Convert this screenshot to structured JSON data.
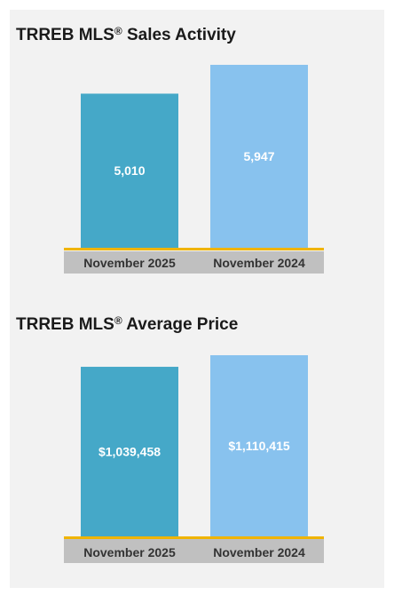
{
  "colors": {
    "panel_bg": "#f2f2f2",
    "bar_current": "#45a8c8",
    "bar_previous": "#88c2ee",
    "baseline": "#f0b400",
    "category_band": "#c0c0c0",
    "title_text": "#1a1a1a",
    "value_label_text": "#ffffff",
    "category_text": "#333333"
  },
  "chart_data": [
    {
      "type": "bar",
      "title_main": "TRREB MLS",
      "title_mark": "®",
      "title_rest": " Sales Activity",
      "categories": [
        "November 2025",
        "November 2024"
      ],
      "values": [
        5010,
        5947
      ],
      "value_labels": [
        "5,010",
        "5,947"
      ]
    },
    {
      "type": "bar",
      "title_main": "TRREB MLS",
      "title_mark": "®",
      "title_rest": " Average Price",
      "categories": [
        "November 2025",
        "November 2024"
      ],
      "values": [
        1039458,
        1110415
      ],
      "value_labels": [
        "$1,039,458",
        "$1,110,415"
      ]
    }
  ]
}
